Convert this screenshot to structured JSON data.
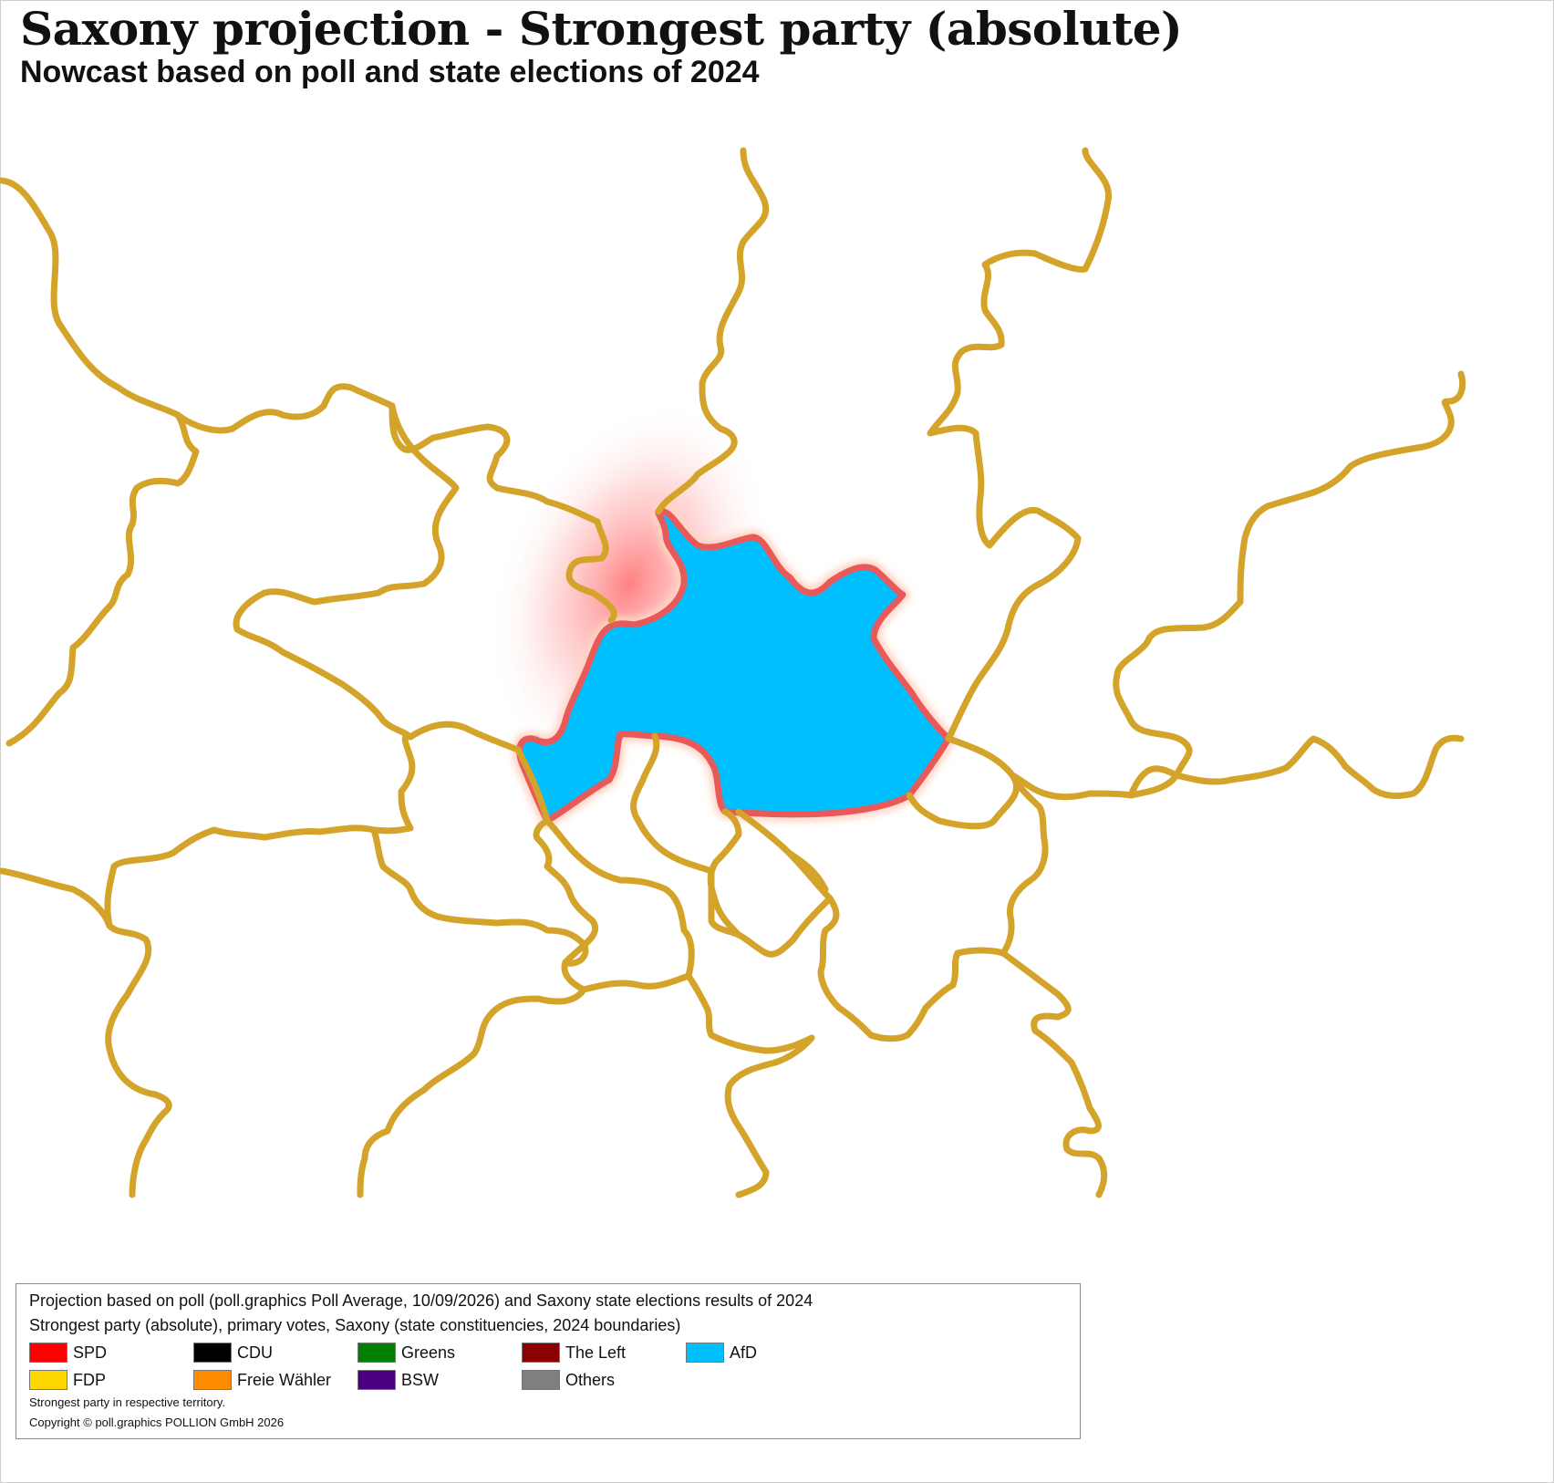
{
  "header": {
    "title": "Saxony projection - Strongest party (absolute)",
    "subtitle": "Nowcast based on poll and state elections of 2024"
  },
  "map": {
    "highlighted_region_party": "AfD",
    "boundary_color": "#D4A32A",
    "highlight_fill": "#00BFFF",
    "highlight_outline": "#E85A5A"
  },
  "legend": {
    "line1": "Projection based on poll (poll.graphics Poll Average, 10/09/2026) and Saxony state elections results of 2024",
    "line2": "Strongest party (absolute), primary votes, Saxony (state constituencies, 2024 boundaries)",
    "entries": [
      {
        "label": "SPD",
        "color": "#FF0000"
      },
      {
        "label": "CDU",
        "color": "#000000"
      },
      {
        "label": "Greens",
        "color": "#008000"
      },
      {
        "label": "The Left",
        "color": "#8B0000"
      },
      {
        "label": "AfD",
        "color": "#00BFFF"
      },
      {
        "label": "FDP",
        "color": "#FFD700"
      },
      {
        "label": "Freie Wähler",
        "color": "#FF8C00"
      },
      {
        "label": "BSW",
        "color": "#4B0082"
      },
      {
        "label": "Others",
        "color": "#808080"
      }
    ],
    "note": "Strongest party in respective territory.",
    "copyright": "Copyright © poll.graphics POLLION GmbH 2026"
  }
}
